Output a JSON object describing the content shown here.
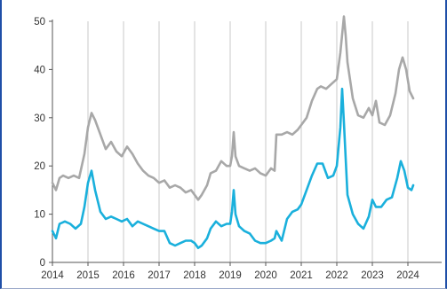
{
  "chart_data": {
    "type": "line",
    "x_range": [
      2014.0,
      2024.95
    ],
    "ylim": [
      0,
      50
    ],
    "y_ticks": [
      "0",
      "10",
      "20",
      "30",
      "40",
      "50"
    ],
    "x_ticks": [
      "2014",
      "2015",
      "2016",
      "2017",
      "2018",
      "2019",
      "2020",
      "2021",
      "2022",
      "2023",
      "2024"
    ],
    "grid": "vertical",
    "series": [
      {
        "color": "#a8a8a8",
        "x": [
          2014.0,
          2014.1,
          2014.2,
          2014.3,
          2014.45,
          2014.6,
          2014.75,
          2014.9,
          2015.0,
          2015.1,
          2015.2,
          2015.35,
          2015.5,
          2015.65,
          2015.8,
          2015.95,
          2016.1,
          2016.25,
          2016.4,
          2016.55,
          2016.7,
          2016.85,
          2017.0,
          2017.15,
          2017.3,
          2017.45,
          2017.6,
          2017.75,
          2017.9,
          2018.0,
          2018.1,
          2018.2,
          2018.35,
          2018.45,
          2018.6,
          2018.75,
          2018.9,
          2019.0,
          2019.05,
          2019.1,
          2019.15,
          2019.25,
          2019.4,
          2019.55,
          2019.7,
          2019.85,
          2020.0,
          2020.15,
          2020.25,
          2020.3,
          2020.45,
          2020.6,
          2020.75,
          2020.9,
          2021.0,
          2021.15,
          2021.3,
          2021.45,
          2021.55,
          2021.7,
          2021.85,
          2022.0,
          2022.1,
          2022.2,
          2022.25,
          2022.3,
          2022.45,
          2022.6,
          2022.75,
          2022.9,
          2023.0,
          2023.1,
          2023.2,
          2023.35,
          2023.5,
          2023.65,
          2023.75,
          2023.85,
          2023.95,
          2024.05,
          2024.15
        ],
        "values": [
          16.5,
          15.0,
          17.5,
          18.0,
          17.5,
          18.0,
          17.5,
          22.5,
          28.0,
          31.0,
          29.5,
          26.5,
          23.5,
          25.0,
          23.0,
          22.0,
          24.0,
          22.5,
          20.5,
          19.0,
          18.0,
          17.5,
          16.5,
          17.0,
          15.5,
          16.0,
          15.5,
          14.5,
          15.0,
          14.0,
          13.0,
          14.0,
          16.0,
          18.5,
          19.0,
          21.0,
          20.0,
          20.0,
          22.0,
          27.0,
          22.0,
          20.0,
          19.5,
          19.0,
          19.5,
          18.5,
          18.0,
          19.5,
          19.0,
          26.5,
          26.5,
          27.0,
          26.5,
          27.5,
          28.5,
          30.0,
          33.5,
          36.0,
          36.5,
          36.0,
          37.0,
          38.0,
          43.5,
          51.0,
          47.0,
          41.5,
          34.0,
          30.5,
          30.0,
          32.0,
          30.5,
          33.5,
          29.0,
          28.5,
          30.5,
          35.0,
          40.0,
          42.5,
          40.0,
          35.5,
          34.0
        ]
      },
      {
        "color": "#1ab0dc",
        "x": [
          2014.0,
          2014.1,
          2014.2,
          2014.35,
          2014.5,
          2014.65,
          2014.8,
          2014.9,
          2015.0,
          2015.1,
          2015.2,
          2015.35,
          2015.5,
          2015.65,
          2015.8,
          2015.95,
          2016.1,
          2016.25,
          2016.4,
          2016.55,
          2016.7,
          2016.85,
          2017.0,
          2017.15,
          2017.3,
          2017.45,
          2017.6,
          2017.75,
          2017.9,
          2018.0,
          2018.1,
          2018.2,
          2018.35,
          2018.45,
          2018.6,
          2018.75,
          2018.9,
          2019.0,
          2019.05,
          2019.1,
          2019.15,
          2019.25,
          2019.4,
          2019.55,
          2019.7,
          2019.85,
          2020.0,
          2020.15,
          2020.25,
          2020.3,
          2020.45,
          2020.6,
          2020.75,
          2020.9,
          2021.0,
          2021.15,
          2021.3,
          2021.45,
          2021.6,
          2021.75,
          2021.9,
          2022.0,
          2022.1,
          2022.15,
          2022.2,
          2022.3,
          2022.45,
          2022.6,
          2022.75,
          2022.9,
          2023.0,
          2023.1,
          2023.25,
          2023.4,
          2023.55,
          2023.7,
          2023.8,
          2023.9,
          2024.0,
          2024.1,
          2024.15
        ],
        "values": [
          6.5,
          5.0,
          8.0,
          8.5,
          8.0,
          7.0,
          8.0,
          11.5,
          16.5,
          19.0,
          15.0,
          10.5,
          9.0,
          9.5,
          9.0,
          8.5,
          9.0,
          7.5,
          8.5,
          8.0,
          7.5,
          7.0,
          6.5,
          6.5,
          4.0,
          3.5,
          4.0,
          4.5,
          4.5,
          4.0,
          3.0,
          3.5,
          5.0,
          7.0,
          8.5,
          7.5,
          8.0,
          8.0,
          10.5,
          15.0,
          10.0,
          7.5,
          6.5,
          6.0,
          4.5,
          4.0,
          4.0,
          4.5,
          5.0,
          6.5,
          4.5,
          9.0,
          10.5,
          11.0,
          12.0,
          15.0,
          18.0,
          20.5,
          20.5,
          17.5,
          18.0,
          20.0,
          28.0,
          36.0,
          29.0,
          14.0,
          10.0,
          8.0,
          7.0,
          9.5,
          13.0,
          11.5,
          11.5,
          13.0,
          13.5,
          17.5,
          21.0,
          19.0,
          15.5,
          15.0,
          16.0
        ]
      }
    ]
  }
}
